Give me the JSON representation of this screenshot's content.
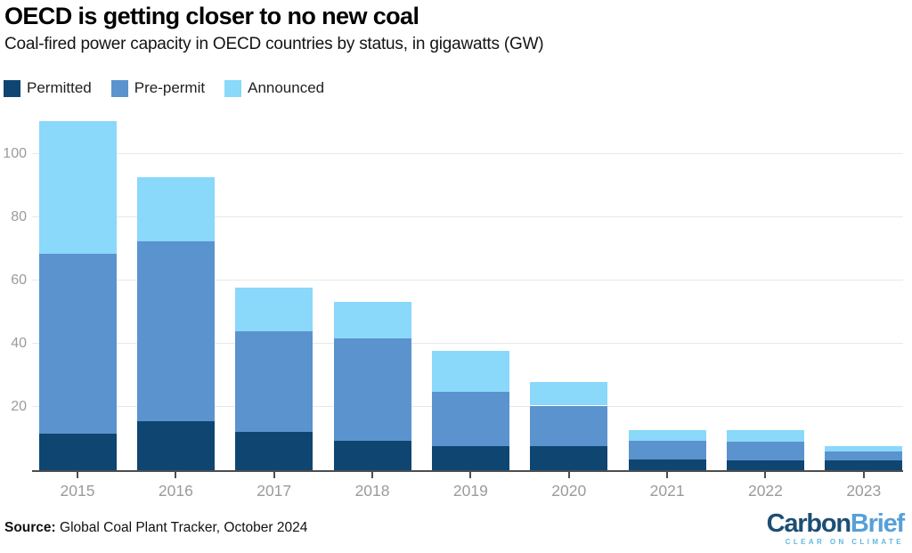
{
  "header": {
    "title": "OECD is getting closer to no new coal",
    "subtitle": "Coal-fired power capacity in OECD countries by status, in gigawatts (GW)"
  },
  "legend": {
    "items": [
      {
        "label": "Permitted",
        "color": "#0F4571"
      },
      {
        "label": "Pre-permit",
        "color": "#5B93CE"
      },
      {
        "label": "Announced",
        "color": "#8AD8FA"
      }
    ]
  },
  "chart_data": {
    "type": "bar",
    "stacked": true,
    "title": "OECD is getting closer to no new coal",
    "subtitle": "Coal-fired power capacity in OECD countries by status, in gigawatts (GW)",
    "xlabel": "",
    "ylabel": "GW",
    "categories": [
      "2015",
      "2016",
      "2017",
      "2018",
      "2019",
      "2020",
      "2021",
      "2022",
      "2023"
    ],
    "series": [
      {
        "name": "Permitted",
        "color": "#0F4571",
        "values": [
          11.4,
          15.4,
          12.2,
          9.3,
          7.7,
          7.6,
          3.5,
          3.2,
          3.2
        ]
      },
      {
        "name": "Pre-permit",
        "color": "#5B93CE",
        "values": [
          57.0,
          56.9,
          31.8,
          32.3,
          17.2,
          12.8,
          5.9,
          5.9,
          2.8
        ]
      },
      {
        "name": "Announced",
        "color": "#8AD8FA",
        "values": [
          41.9,
          20.2,
          13.7,
          11.6,
          12.8,
          7.5,
          3.2,
          3.5,
          1.7
        ]
      }
    ],
    "totals": [
      110.3,
      92.5,
      57.7,
      53.2,
      37.7,
      27.9,
      12.6,
      12.6,
      7.7
    ],
    "yticks": [
      20,
      40,
      60,
      80,
      100
    ],
    "ylim": [
      0,
      112
    ],
    "grid": true,
    "legend_position": "top-left",
    "colors": {
      "gridline": "#e8e8e8",
      "axis": "#4d4d4d",
      "tick_label": "#9b9b9b"
    }
  },
  "footer": {
    "source_label": "Source:",
    "source_text": " Global Coal Plant Tracker, October 2024"
  },
  "logo": {
    "part1": "Carbon",
    "part2": "Brief",
    "tagline": "CLEAR ON CLIMATE",
    "color1": "#1D4E74",
    "color2": "#56A0D8",
    "tagline_color": "#62B8E2"
  }
}
